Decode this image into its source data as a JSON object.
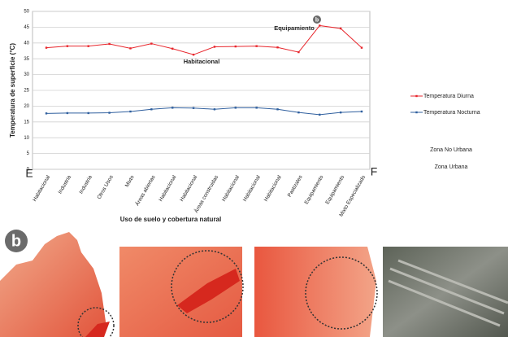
{
  "chart_data": {
    "type": "line",
    "y_label": "Temperatura de superficie (°C)",
    "x_label": "Uso de suelo y cobertura natural",
    "categories": [
      "Habitacional",
      "Industria",
      "Industria",
      "Otros Usos",
      "Mixto",
      "Áreas abiertas",
      "Habitacional",
      "Habitacional",
      "Áreas construidas",
      "Habitacional",
      "Habitacional",
      "Habitacional",
      "Pastizales",
      "Equipamiento",
      "Equipamiento",
      "Mixto Especializado"
    ],
    "series": [
      {
        "name": "Temperatura Diurna",
        "color": "#e8262c",
        "values": [
          38.5,
          39,
          39,
          39.7,
          38.3,
          39.8,
          38.2,
          36.3,
          38.8,
          38.9,
          39,
          38.6,
          37.1,
          45.5,
          44.6,
          38.5
        ]
      },
      {
        "name": "Temperatura Nocturna",
        "color": "#2f5f9e",
        "values": [
          17.7,
          17.8,
          17.8,
          17.9,
          18.3,
          19,
          19.5,
          19.4,
          19,
          19.5,
          19.5,
          19,
          18,
          17.3,
          18,
          18.3
        ]
      }
    ],
    "ylim": [
      0,
      50
    ],
    "yticks": [
      0,
      5,
      10,
      15,
      20,
      25,
      30,
      35,
      40,
      45,
      50
    ],
    "grid": true,
    "annotations": [
      "Equipamiento",
      "Habitacional",
      "b"
    ],
    "side_labels": [
      "E",
      "F"
    ],
    "zone_labels": [
      "Zona No Urbana",
      "Zona Urbana"
    ],
    "panel_label": "b"
  }
}
